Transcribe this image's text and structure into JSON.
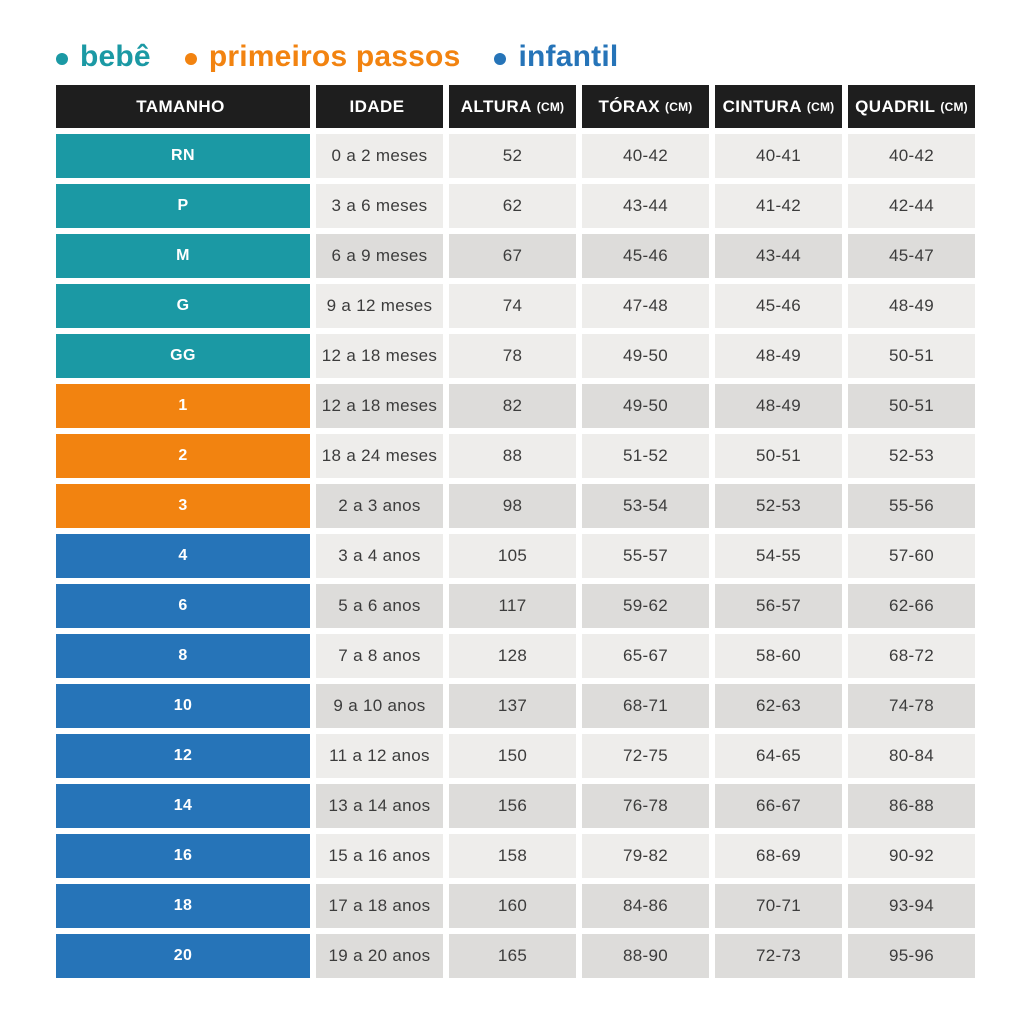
{
  "chart_data": {
    "type": "table",
    "legend": [
      {
        "label": "bebê",
        "group": "bebe"
      },
      {
        "label": "primeiros passos",
        "group": "primeiros_passos"
      },
      {
        "label": "infantil",
        "group": "infantil"
      }
    ],
    "columns": [
      {
        "label": "TAMANHO",
        "unit": ""
      },
      {
        "label": "IDADE",
        "unit": ""
      },
      {
        "label": "ALTURA",
        "unit": "(CM)"
      },
      {
        "label": "TÓRAX",
        "unit": "(CM)"
      },
      {
        "label": "CINTURA",
        "unit": "(CM)"
      },
      {
        "label": "QUADRIL",
        "unit": "(CM)"
      }
    ],
    "rows": [
      {
        "size": "RN",
        "group": "bebe",
        "shade": "light",
        "age": "0 a 2 meses",
        "altura": "52",
        "torax": "40-42",
        "cintura": "40-41",
        "quadril": "40-42"
      },
      {
        "size": "P",
        "group": "bebe",
        "shade": "light",
        "age": "3 a 6 meses",
        "altura": "62",
        "torax": "43-44",
        "cintura": "41-42",
        "quadril": "42-44"
      },
      {
        "size": "M",
        "group": "bebe",
        "shade": "dark",
        "age": "6 a 9 meses",
        "altura": "67",
        "torax": "45-46",
        "cintura": "43-44",
        "quadril": "45-47"
      },
      {
        "size": "G",
        "group": "bebe",
        "shade": "light",
        "age": "9 a 12 meses",
        "altura": "74",
        "torax": "47-48",
        "cintura": "45-46",
        "quadril": "48-49"
      },
      {
        "size": "GG",
        "group": "bebe",
        "shade": "light",
        "age": "12 a 18 meses",
        "altura": "78",
        "torax": "49-50",
        "cintura": "48-49",
        "quadril": "50-51"
      },
      {
        "size": "1",
        "group": "primeiros_passos",
        "shade": "dark",
        "age": "12 a 18 meses",
        "altura": "82",
        "torax": "49-50",
        "cintura": "48-49",
        "quadril": "50-51"
      },
      {
        "size": "2",
        "group": "primeiros_passos",
        "shade": "light",
        "age": "18 a 24 meses",
        "altura": "88",
        "torax": "51-52",
        "cintura": "50-51",
        "quadril": "52-53"
      },
      {
        "size": "3",
        "group": "primeiros_passos",
        "shade": "dark",
        "age": "2 a 3 anos",
        "altura": "98",
        "torax": "53-54",
        "cintura": "52-53",
        "quadril": "55-56"
      },
      {
        "size": "4",
        "group": "infantil",
        "shade": "light",
        "age": "3 a 4 anos",
        "altura": "105",
        "torax": "55-57",
        "cintura": "54-55",
        "quadril": "57-60"
      },
      {
        "size": "6",
        "group": "infantil",
        "shade": "dark",
        "age": "5 a 6 anos",
        "altura": "117",
        "torax": "59-62",
        "cintura": "56-57",
        "quadril": "62-66"
      },
      {
        "size": "8",
        "group": "infantil",
        "shade": "light",
        "age": "7 a 8 anos",
        "altura": "128",
        "torax": "65-67",
        "cintura": "58-60",
        "quadril": "68-72"
      },
      {
        "size": "10",
        "group": "infantil",
        "shade": "dark",
        "age": "9 a 10 anos",
        "altura": "137",
        "torax": "68-71",
        "cintura": "62-63",
        "quadril": "74-78"
      },
      {
        "size": "12",
        "group": "infantil",
        "shade": "light",
        "age": "11 a 12 anos",
        "altura": "150",
        "torax": "72-75",
        "cintura": "64-65",
        "quadril": "80-84"
      },
      {
        "size": "14",
        "group": "infantil",
        "shade": "dark",
        "age": "13 a 14 anos",
        "altura": "156",
        "torax": "76-78",
        "cintura": "66-67",
        "quadril": "86-88"
      },
      {
        "size": "16",
        "group": "infantil",
        "shade": "light",
        "age": "15 a 16 anos",
        "altura": "158",
        "torax": "79-82",
        "cintura": "68-69",
        "quadril": "90-92"
      },
      {
        "size": "18",
        "group": "infantil",
        "shade": "dark",
        "age": "17 a 18 anos",
        "altura": "160",
        "torax": "84-86",
        "cintura": "70-71",
        "quadril": "93-94"
      },
      {
        "size": "20",
        "group": "infantil",
        "shade": "dark",
        "age": "19 a 20 anos",
        "altura": "165",
        "torax": "88-90",
        "cintura": "72-73",
        "quadril": "95-96"
      }
    ],
    "colors": {
      "header_bg": "#1E1E1E",
      "header_text": "#FFFFFF",
      "row_light": "#EEEDEB",
      "row_dark": "#DDDCDA",
      "cell_text": "#3C3C3C",
      "groups": {
        "bebe": "#1B99A4",
        "primeiros_passos": "#F28310",
        "infantil": "#2674B8"
      }
    }
  }
}
